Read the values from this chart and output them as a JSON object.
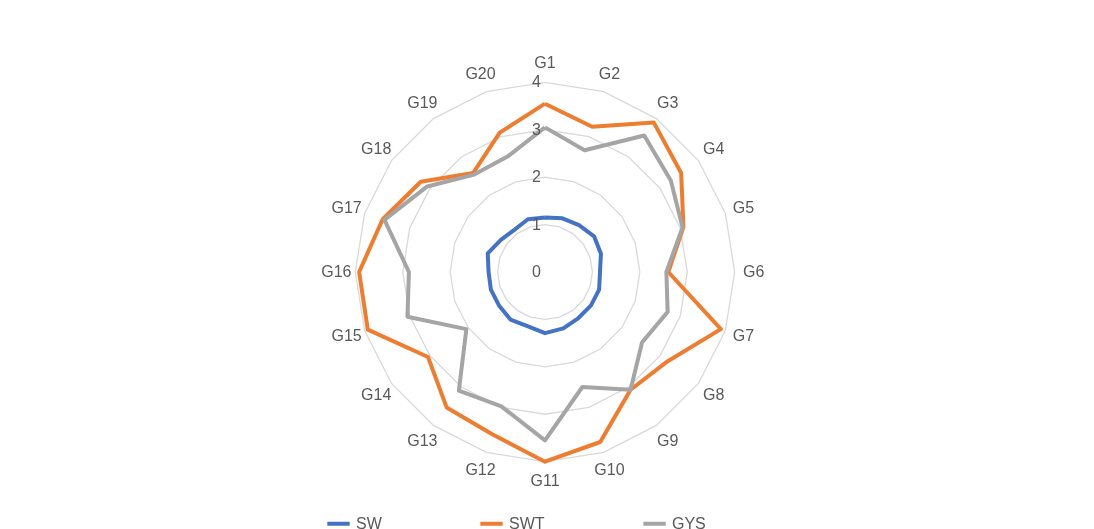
{
  "chart_data": {
    "type": "radar",
    "categories": [
      "G1",
      "G2",
      "G3",
      "G4",
      "G5",
      "G6",
      "G7",
      "G8",
      "G9",
      "G10",
      "G11",
      "G12",
      "G13",
      "G14",
      "G15",
      "G16",
      "G17",
      "G18",
      "G19",
      "G20"
    ],
    "ylim": [
      0,
      4
    ],
    "yticks": [
      0,
      1,
      2,
      3,
      4
    ],
    "grid": true,
    "legend": "bottom",
    "series": [
      {
        "name": "SW",
        "color": "#4472c4",
        "values": [
          1.15,
          1.19,
          1.22,
          1.28,
          1.24,
          1.16,
          1.2,
          1.2,
          1.2,
          1.25,
          1.29,
          1.2,
          1.24,
          1.2,
          1.2,
          1.19,
          1.27,
          1.15,
          1.1,
          1.17
        ]
      },
      {
        "name": "SWT",
        "color": "#ed7d31",
        "values": [
          3.55,
          3.22,
          3.9,
          3.55,
          3.07,
          2.6,
          3.9,
          3.2,
          3.07,
          3.77,
          4.0,
          3.6,
          3.53,
          3.05,
          3.93,
          3.92,
          3.6,
          3.24,
          2.58,
          3.09
        ]
      },
      {
        "name": "GYS",
        "color": "#a5a5a5",
        "values": [
          3.05,
          2.7,
          3.56,
          3.28,
          3.05,
          2.56,
          2.72,
          2.53,
          3.07,
          2.55,
          3.55,
          2.98,
          3.09,
          2.05,
          3.05,
          2.87,
          3.56,
          3.07,
          2.54,
          2.56
        ]
      }
    ]
  }
}
